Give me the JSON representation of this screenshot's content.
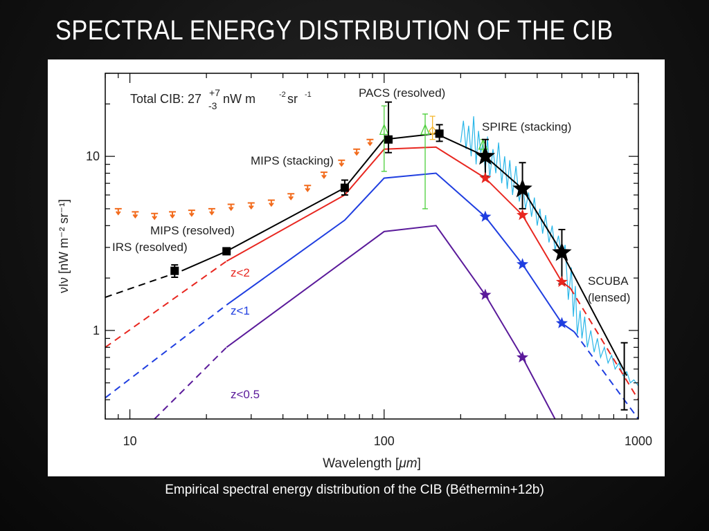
{
  "slide": {
    "title": "SPECTRAL ENERGY DISTRIBUTION OF THE CIB",
    "caption": "Empirical spectral energy distribution of the CIB (Béthermin+12b)"
  },
  "chart_data": {
    "type": "line",
    "x_scale": "log",
    "y_scale": "log",
    "xlim": [
      8,
      1000
    ],
    "ylim": [
      0.31,
      30
    ],
    "xlabel_main": "Wavelength [",
    "xlabel_unit": "μm",
    "xlabel_end": "]",
    "ylabel": "νIν [nW m⁻² sr⁻¹]",
    "x_ticks": [
      {
        "value": 10,
        "label": "10"
      },
      {
        "value": 100,
        "label": "100"
      },
      {
        "value": 1000,
        "label": "1000"
      }
    ],
    "y_ticks": [
      {
        "value": 1,
        "label": "1"
      },
      {
        "value": 10,
        "label": "10"
      }
    ],
    "annotations": {
      "total_prefix": "Total CIB: 27",
      "total_plus": "+7",
      "total_minus": "-3",
      "total_unit": "nW m",
      "total_exp1": "-2",
      "total_sr": " sr",
      "total_exp2": "-1",
      "pacs": "PACS (resolved)",
      "spire": "SPIRE (stacking)",
      "mips_stacking": "MIPS (stacking)",
      "mips_resolved": "MIPS (resolved)",
      "irs": "IRS (resolved)",
      "scuba_line1": "SCUBA",
      "scuba_line2": "(lensed)",
      "z2": "z<2",
      "z1": "z<1",
      "z05": "z<0.5"
    },
    "series": [
      {
        "color": "#000000",
        "label_key": null,
        "dashed": [
          [
            8,
            1.55
          ],
          [
            16,
            2.2
          ]
        ],
        "solid": [
          [
            16,
            2.2
          ],
          [
            24,
            2.85
          ],
          [
            70,
            6.6
          ],
          [
            100,
            12.5
          ],
          [
            160,
            13.5
          ],
          [
            250,
            10.0
          ],
          [
            350,
            6.5
          ],
          [
            500,
            2.8
          ],
          [
            900,
            0.55
          ]
        ]
      },
      {
        "color": "#e8261f",
        "label_key": "z2",
        "dashed": [
          [
            8,
            0.8
          ],
          [
            24,
            2.5
          ]
        ],
        "solid": [
          [
            24,
            2.5
          ],
          [
            70,
            6.0
          ],
          [
            100,
            11.0
          ],
          [
            160,
            11.3
          ],
          [
            250,
            7.5
          ],
          [
            350,
            4.6
          ],
          [
            500,
            1.9
          ],
          [
            540,
            1.75
          ]
        ],
        "dashed_tail": [
          [
            540,
            1.75
          ],
          [
            1000,
            0.4
          ]
        ]
      },
      {
        "color": "#1f3ee0",
        "label_key": "z1",
        "dashed": [
          [
            8,
            0.41
          ],
          [
            24,
            1.4
          ]
        ],
        "solid": [
          [
            24,
            1.4
          ],
          [
            70,
            4.3
          ],
          [
            100,
            7.5
          ],
          [
            160,
            8.0
          ],
          [
            250,
            4.5
          ],
          [
            350,
            2.4
          ],
          [
            500,
            1.1
          ],
          [
            560,
            0.98
          ]
        ],
        "dashed_tail": [
          [
            560,
            0.98
          ],
          [
            1000,
            0.31
          ]
        ]
      },
      {
        "color": "#5a1a9a",
        "label_key": "z05",
        "dashed": [
          [
            12.5,
            0.31
          ],
          [
            24,
            0.8
          ]
        ],
        "solid": [
          [
            24,
            0.8
          ],
          [
            100,
            3.7
          ],
          [
            160,
            4.0
          ],
          [
            250,
            1.6
          ],
          [
            350,
            0.7
          ],
          [
            470,
            0.31
          ]
        ]
      }
    ],
    "black_squares": [
      {
        "x": 15,
        "y": 2.2,
        "lo": 2.02,
        "hi": 2.38
      },
      {
        "x": 24,
        "y": 2.85,
        "lo": 2.76,
        "hi": 2.95
      },
      {
        "x": 70,
        "y": 6.6,
        "lo": 6.0,
        "hi": 7.3
      },
      {
        "x": 104,
        "y": 12.5,
        "lo": 10.5,
        "hi": 20.5
      },
      {
        "x": 165,
        "y": 13.5,
        "lo": 12.2,
        "hi": 15.2
      }
    ],
    "black_stars": [
      {
        "x": 250,
        "y": 10.0,
        "lo": 7.7,
        "hi": 12.5
      },
      {
        "x": 350,
        "y": 6.5,
        "lo": 5.0,
        "hi": 9.2
      },
      {
        "x": 500,
        "y": 2.8,
        "lo": 1.85,
        "hi": 3.8
      }
    ],
    "black_error_only": [
      {
        "x": 880,
        "lo": 0.35,
        "hi": 0.85
      }
    ],
    "colored_stars": [
      {
        "color": "#e8261f",
        "points": [
          [
            250,
            7.5
          ],
          [
            350,
            4.6
          ],
          [
            500,
            1.9
          ]
        ]
      },
      {
        "color": "#1f3ee0",
        "points": [
          [
            250,
            4.5
          ],
          [
            350,
            2.4
          ],
          [
            500,
            1.1
          ]
        ]
      },
      {
        "color": "#5a1a9a",
        "points": [
          [
            250,
            1.6
          ],
          [
            350,
            0.7
          ]
        ]
      }
    ],
    "orange_upper_limits": [
      [
        9,
        5.0
      ],
      [
        10.5,
        4.8
      ],
      [
        12.5,
        4.7
      ],
      [
        14.7,
        4.8
      ],
      [
        17.5,
        4.9
      ],
      [
        21,
        5.0
      ],
      [
        25,
        5.3
      ],
      [
        30,
        5.4
      ],
      [
        36,
        5.6
      ],
      [
        43,
        6.1
      ],
      [
        50,
        6.8
      ],
      [
        58,
        8.1
      ],
      [
        68,
        9.5
      ],
      [
        78,
        11.0
      ],
      [
        88,
        12.5
      ]
    ],
    "green_points": [
      {
        "x": 100,
        "y": 14.0,
        "lo": 8.2,
        "hi": 19.5
      },
      {
        "x": 145,
        "y": 14.0,
        "lo": 5.0,
        "hi": 17.5
      },
      {
        "x": 245,
        "y": 11.5,
        "lo": 10.0,
        "hi": 12.5
      }
    ],
    "yellow_point": {
      "x": 155,
      "y": 14.0,
      "lo": 12.5,
      "hi": 17.0
    },
    "cyan_spectrum": [
      [
        200,
        12
      ],
      [
        205,
        16
      ],
      [
        210,
        11
      ],
      [
        215,
        15
      ],
      [
        220,
        10
      ],
      [
        225,
        17
      ],
      [
        230,
        9
      ],
      [
        235,
        14
      ],
      [
        240,
        10.5
      ],
      [
        245,
        12
      ],
      [
        250,
        8
      ],
      [
        255,
        13
      ],
      [
        260,
        7.5
      ],
      [
        268,
        11
      ],
      [
        275,
        8
      ],
      [
        282,
        12
      ],
      [
        290,
        7
      ],
      [
        298,
        10
      ],
      [
        305,
        6.5
      ],
      [
        312,
        9.5
      ],
      [
        320,
        6
      ],
      [
        330,
        8.8
      ],
      [
        340,
        5.5
      ],
      [
        350,
        7
      ],
      [
        360,
        5
      ],
      [
        370,
        6.2
      ],
      [
        380,
        4.5
      ],
      [
        390,
        5.8
      ],
      [
        400,
        4
      ],
      [
        410,
        5
      ],
      [
        420,
        3.6
      ],
      [
        432,
        4.6
      ],
      [
        445,
        3.2
      ],
      [
        458,
        4.0
      ],
      [
        470,
        2.9
      ],
      [
        485,
        3.5
      ],
      [
        500,
        2.6
      ],
      [
        515,
        3.1
      ],
      [
        530,
        1.5
      ],
      [
        545,
        2.3
      ],
      [
        555,
        1.2
      ],
      [
        565,
        1.8
      ],
      [
        575,
        0.95
      ],
      [
        590,
        1.3
      ],
      [
        600,
        0.9
      ],
      [
        615,
        1.2
      ],
      [
        630,
        0.8
      ],
      [
        650,
        1.0
      ],
      [
        670,
        0.75
      ],
      [
        690,
        0.9
      ],
      [
        710,
        0.7
      ],
      [
        735,
        0.8
      ],
      [
        760,
        0.65
      ],
      [
        785,
        0.72
      ],
      [
        810,
        0.6
      ],
      [
        840,
        0.65
      ],
      [
        870,
        0.55
      ],
      [
        900,
        0.58
      ],
      [
        930,
        0.5
      ],
      [
        960,
        0.52
      ],
      [
        1000,
        0.48
      ]
    ]
  }
}
